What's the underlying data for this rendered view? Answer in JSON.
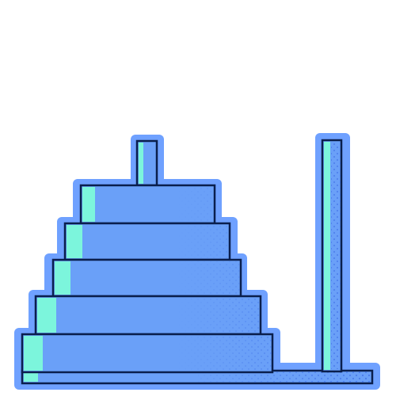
{
  "illustration": {
    "subject": "tower-of-hanoi",
    "disk_count": 5,
    "peg_count": 2,
    "colors": {
      "halo": "#6fa1ff",
      "fill": "#6aa0f8",
      "outline": "#0a1f4d",
      "highlight": "#7cf5dc",
      "dots": "#3e6ee6",
      "background": "#ffffff"
    }
  }
}
